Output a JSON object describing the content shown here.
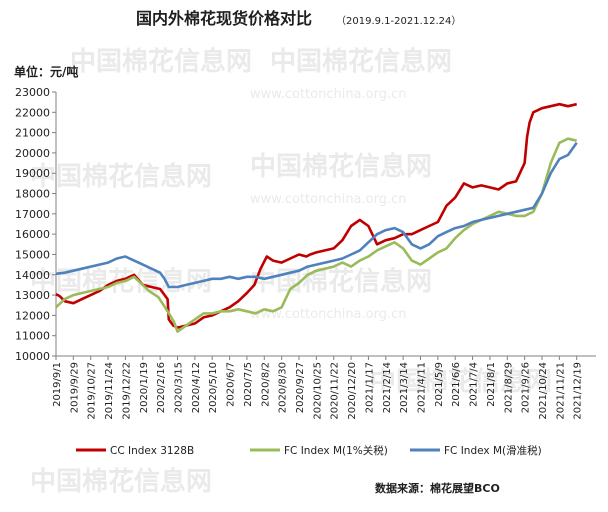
{
  "chart_data": {
    "type": "line",
    "title": "国内外棉花现货价格对比",
    "subtitle": "（2019.9.1-2021.12.24）",
    "unit_label": "单位：元/吨",
    "source": "数据来源：棉花展望BCO",
    "watermark": {
      "cn": "中国棉花信息网",
      "en": "www.cottonchina.org.cn"
    },
    "ylim": [
      10000,
      23000
    ],
    "y_ticks": [
      "10000",
      "11000",
      "12000",
      "13000",
      "14000",
      "15000",
      "16000",
      "17000",
      "18000",
      "19000",
      "20000",
      "21000",
      "22000",
      "23000"
    ],
    "x_tick_labels": [
      "2019/9/1",
      "2019/9/29",
      "2019/10/27",
      "2019/11/24",
      "2019/12/22",
      "2020/1/19",
      "2020/2/16",
      "2020/3/15",
      "2020/4/12",
      "2020/5/10",
      "2020/6/7",
      "2020/7/5",
      "2020/8/2",
      "2020/8/30",
      "2020/9/27",
      "2020/10/25",
      "2020/11/22",
      "2020/12/20",
      "2021/1/17",
      "2021/2/14",
      "2021/3/14",
      "2021/4/11",
      "2021/5/9",
      "2021/6/6",
      "2021/7/4",
      "2021/8/1",
      "2021/8/29",
      "2021/9/26",
      "2021/10/24",
      "2021/11/21",
      "2021/12/19"
    ],
    "x_period_days": 28,
    "grid": false,
    "legend_position": "bottom",
    "series": [
      {
        "name": "CC Index 3128B",
        "color": "#c00000",
        "x_days": [
          0,
          6,
          14,
          28,
          42,
          56,
          70,
          84,
          98,
          112,
          126,
          140,
          154,
          168,
          180,
          182,
          189,
          196,
          210,
          224,
          238,
          252,
          266,
          280,
          294,
          308,
          320,
          330,
          340,
          350,
          364,
          378,
          392,
          404,
          410,
          420,
          434,
          448,
          462,
          476,
          490,
          504,
          518,
          532,
          546,
          560,
          574,
          588,
          602,
          616,
          630,
          644,
          658,
          672,
          686,
          700,
          714,
          728,
          742,
          756,
          760,
          764,
          770,
          784,
          798,
          812,
          826,
          840
        ],
        "values": [
          13050,
          12950,
          12700,
          12600,
          12800,
          13000,
          13200,
          13500,
          13700,
          13800,
          14000,
          13500,
          13400,
          13300,
          12800,
          11800,
          11500,
          11400,
          11500,
          11600,
          11900,
          12000,
          12200,
          12400,
          12700,
          13100,
          13500,
          14300,
          14900,
          14700,
          14600,
          14800,
          15000,
          14900,
          15000,
          15100,
          15200,
          15300,
          15700,
          16400,
          16700,
          16400,
          15500,
          15700,
          15800,
          16000,
          16000,
          16200,
          16400,
          16600,
          17400,
          17800,
          18500,
          18300,
          18400,
          18300,
          18200,
          18500,
          18600,
          19500,
          20800,
          21500,
          22000,
          22200,
          22300,
          22400,
          22300,
          22400
        ]
      },
      {
        "name": "FC Index M(1%关税)",
        "color": "#9bbb59",
        "x_days": [
          0,
          14,
          28,
          42,
          56,
          70,
          84,
          98,
          112,
          126,
          140,
          150,
          165,
          180,
          190,
          196,
          210,
          224,
          238,
          252,
          266,
          280,
          294,
          308,
          322,
          336,
          350,
          364,
          378,
          392,
          406,
          420,
          434,
          448,
          462,
          476,
          490,
          504,
          518,
          532,
          546,
          560,
          574,
          588,
          602,
          616,
          630,
          644,
          658,
          672,
          686,
          700,
          714,
          728,
          742,
          756,
          770,
          784,
          798,
          812,
          826,
          840
        ],
        "values": [
          12400,
          12800,
          13000,
          13100,
          13200,
          13300,
          13400,
          13600,
          13700,
          13900,
          13500,
          13200,
          12900,
          12200,
          11700,
          11200,
          11500,
          11800,
          12100,
          12100,
          12200,
          12200,
          12300,
          12200,
          12100,
          12300,
          12200,
          12400,
          13300,
          13600,
          14000,
          14200,
          14300,
          14400,
          14600,
          14400,
          14700,
          14900,
          15200,
          15400,
          15600,
          15300,
          14700,
          14500,
          14800,
          15100,
          15300,
          15800,
          16200,
          16500,
          16700,
          16900,
          17100,
          17000,
          16900,
          16900,
          17100,
          18000,
          19500,
          20500,
          20700,
          20600
        ]
      },
      {
        "name": "FC Index M(滑准税)",
        "color": "#4f81bd",
        "x_days": [
          0,
          14,
          28,
          42,
          56,
          70,
          84,
          98,
          112,
          126,
          140,
          154,
          168,
          175,
          182,
          196,
          210,
          224,
          238,
          252,
          266,
          280,
          294,
          308,
          322,
          336,
          350,
          364,
          378,
          392,
          406,
          420,
          434,
          448,
          462,
          476,
          490,
          504,
          518,
          532,
          546,
          560,
          574,
          588,
          602,
          616,
          630,
          644,
          658,
          672,
          686,
          700,
          714,
          728,
          742,
          756,
          770,
          784,
          798,
          812,
          826,
          840
        ],
        "values": [
          14050,
          14100,
          14200,
          14300,
          14400,
          14500,
          14600,
          14800,
          14900,
          14700,
          14500,
          14300,
          14100,
          13800,
          13400,
          13400,
          13500,
          13600,
          13700,
          13800,
          13800,
          13900,
          13800,
          13900,
          13900,
          13800,
          13900,
          14000,
          14100,
          14200,
          14400,
          14500,
          14600,
          14700,
          14800,
          15000,
          15200,
          15600,
          16000,
          16200,
          16300,
          16100,
          15500,
          15300,
          15500,
          15900,
          16100,
          16300,
          16400,
          16600,
          16700,
          16800,
          16900,
          17000,
          17100,
          17200,
          17300,
          18000,
          19000,
          19700,
          19900,
          20500
        ]
      }
    ]
  }
}
